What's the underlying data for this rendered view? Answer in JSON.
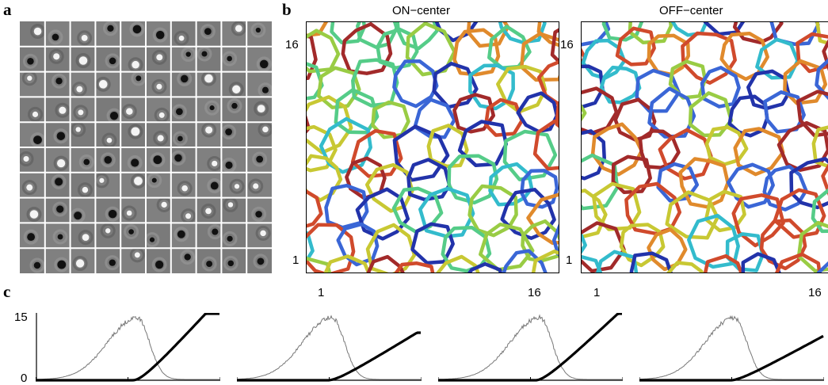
{
  "panel_labels": {
    "a": "a",
    "b": "b",
    "c": "c"
  },
  "panel_b": {
    "titles": {
      "left": "ON−center",
      "right": "OFF−center"
    },
    "axis_ticks": {
      "low": "1",
      "high": "16"
    },
    "ring_colors": [
      "#2233aa",
      "#3a66d6",
      "#33bbcc",
      "#55cc88",
      "#99cc44",
      "#c8c833",
      "#e08a2c",
      "#d04a2c",
      "#a22a2a"
    ]
  },
  "panel_c": {
    "y_ticks": {
      "top": "15",
      "bottom": "0"
    },
    "histogram_color": "#777777",
    "curve_color": "#000000"
  },
  "chart_data": [
    {
      "type": "line",
      "title": "",
      "x_ticks": [],
      "y_ticks": [
        "0",
        "15"
      ],
      "series": [
        {
          "values": "histogram"
        },
        {
          "values": "nonlinearity"
        }
      ],
      "ylim": [
        0,
        15
      ]
    },
    {
      "type": "line",
      "title": "",
      "x_ticks": [],
      "y_ticks": [],
      "series": [
        {
          "values": "histogram"
        },
        {
          "values": "nonlinearity"
        }
      ],
      "ylim": [
        0,
        15
      ]
    },
    {
      "type": "line",
      "title": "",
      "x_ticks": [],
      "y_ticks": [],
      "series": [
        {
          "values": "histogram"
        },
        {
          "values": "nonlinearity"
        }
      ],
      "ylim": [
        0,
        15
      ]
    },
    {
      "type": "line",
      "title": "",
      "x_ticks": [],
      "y_ticks": [],
      "series": [
        {
          "values": "histogram"
        },
        {
          "values": "nonlinearity"
        }
      ],
      "ylim": [
        0,
        15
      ]
    }
  ]
}
